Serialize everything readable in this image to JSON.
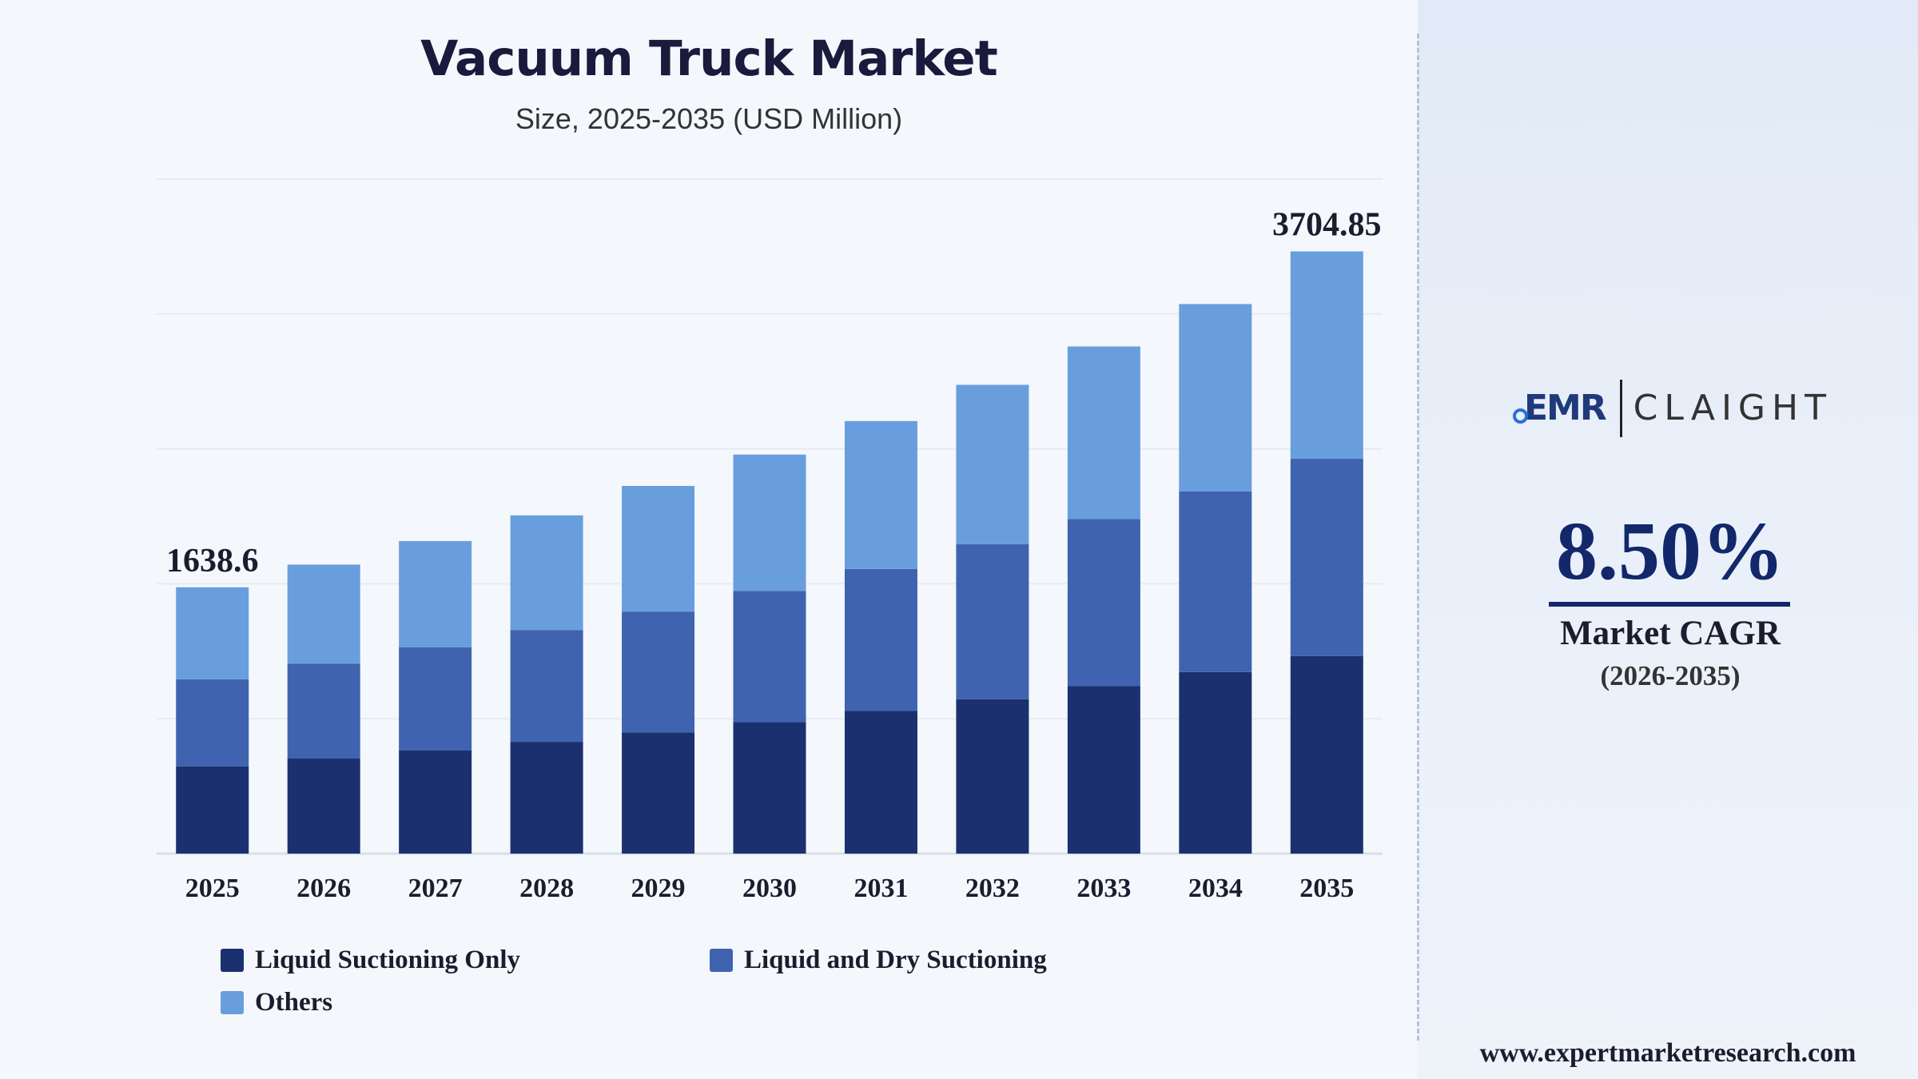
{
  "header": {
    "title": "Vacuum Truck Market",
    "subtitle": "Size, 2025-2035 (USD Million)"
  },
  "chart_data": {
    "type": "bar",
    "stacked": true,
    "categories": [
      "2025",
      "2026",
      "2027",
      "2028",
      "2029",
      "2030",
      "2031",
      "2032",
      "2033",
      "2034",
      "2035"
    ],
    "series": [
      {
        "name": "Liquid Suctioning Only",
        "color": "#1b316f",
        "values": [
          537,
          585,
          636,
          688,
          746,
          810,
          878,
          950,
          1030,
          1117,
          1215
        ]
      },
      {
        "name": "Liquid and Dry Suctioning",
        "color": "#4063b0",
        "values": [
          536,
          583,
          634,
          688,
          743,
          806,
          873,
          953,
          1028,
          1112,
          1215
        ]
      },
      {
        "name": "Others",
        "color": "#699ede",
        "values": [
          565.6,
          610,
          653,
          705,
          773,
          839,
          910,
          981,
          1062,
          1152,
          1274.85
        ]
      }
    ],
    "totals": [
      1638.6,
      1778,
      1923,
      2081,
      2262,
      2455,
      2661,
      2884,
      3120,
      3381,
      3704.85
    ],
    "data_labels": [
      {
        "category": "2025",
        "text": "1638.6"
      },
      {
        "category": "2035",
        "text": "3704.85"
      }
    ],
    "ylim": [
      0,
      4150
    ],
    "grid": true,
    "legend_position": "bottom-left"
  },
  "branding": {
    "logo_left": "EMR",
    "logo_right": "CLAIGHT",
    "cagr_value": "8.50%",
    "cagr_label": "Market CAGR",
    "cagr_period": "(2026-2035)",
    "website": "www.expertmarketresearch.com"
  }
}
